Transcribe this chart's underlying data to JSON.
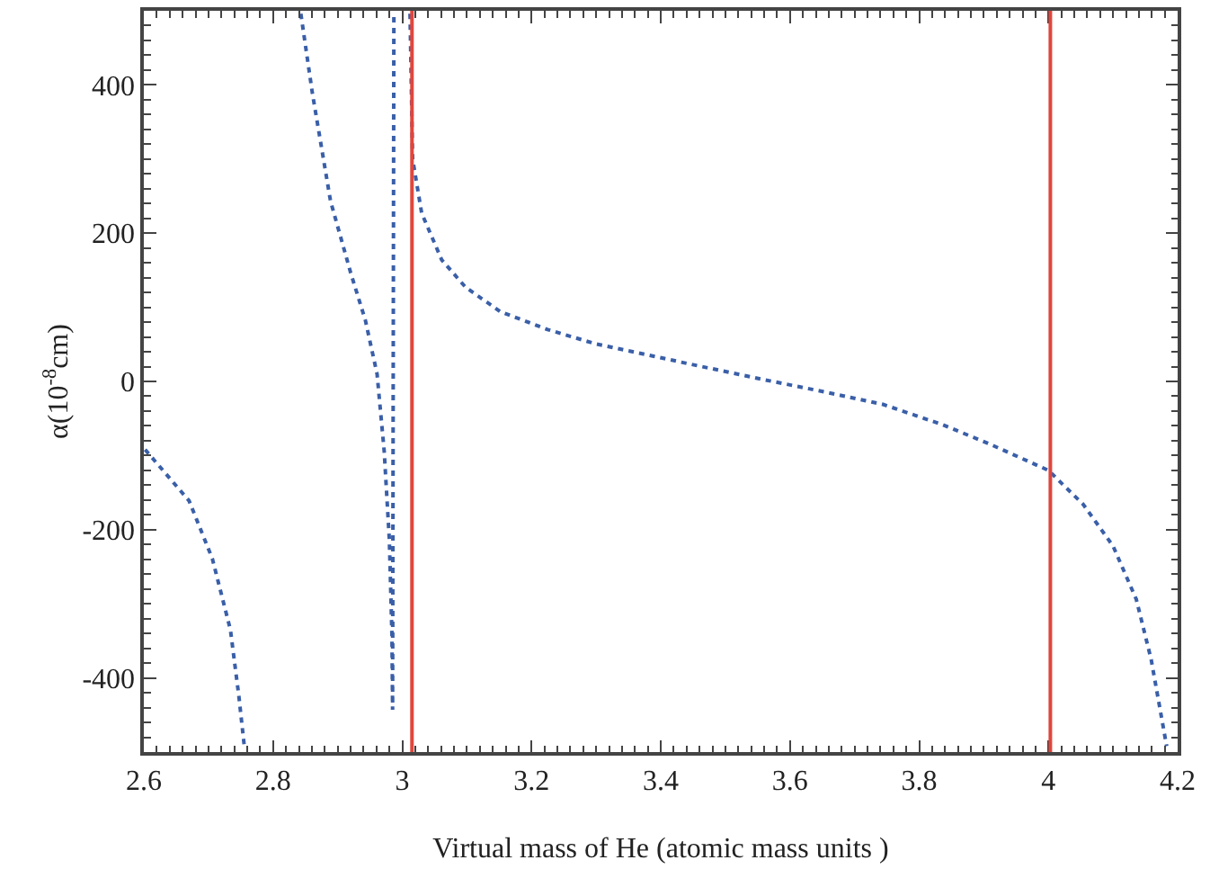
{
  "chart_data": {
    "type": "line",
    "xlabel": "Virtual mass of He (atomic mass units )",
    "ylabel": "α(10$^{-8}$cm)",
    "xlim": [
      2.6,
      4.2
    ],
    "xticks": [
      2.6,
      2.8,
      3,
      3.2,
      3.4,
      3.6,
      3.8,
      4,
      4.2
    ],
    "ylim": [
      -500,
      500
    ],
    "yticks": [
      -400,
      -200,
      0,
      200,
      400
    ],
    "marker": "none",
    "line_style": "dotted",
    "series": [
      {
        "color": "#3a5fa8",
        "x": [
          2.602,
          2.67,
          2.706,
          2.734,
          2.747,
          2.756,
          null,
          2.843,
          2.861,
          2.889,
          2.92,
          2.943,
          2.961,
          2.972,
          2.98,
          2.984,
          2.985,
          2.987,
          null,
          3.012,
          3.016,
          3.03,
          3.061,
          3.098,
          3.152,
          3.225,
          3.298,
          3.389,
          3.453,
          3.562,
          3.653,
          3.744,
          3.835,
          3.908,
          4.0,
          4.054,
          4.1,
          4.136,
          4.159,
          4.183
        ],
        "values": [
          -92,
          -161,
          -239,
          -335,
          -424,
          -496,
          null,
          496,
          388,
          243,
          147,
          82,
          10,
          -94,
          -214,
          -342,
          -443,
          496,
          null,
          496,
          300,
          227,
          164,
          127,
          94,
          70,
          51,
          34,
          22,
          2,
          -14,
          -31,
          -58,
          -84,
          -120,
          -166,
          -222,
          -294,
          -375,
          -492
        ]
      }
    ],
    "ref_lines": [
      {
        "axis": "x",
        "value": 3.015,
        "color": "#e0463c",
        "line_style": "solid"
      },
      {
        "axis": "x",
        "value": 4.003,
        "color": "#e0463c",
        "line_style": "solid"
      }
    ]
  }
}
